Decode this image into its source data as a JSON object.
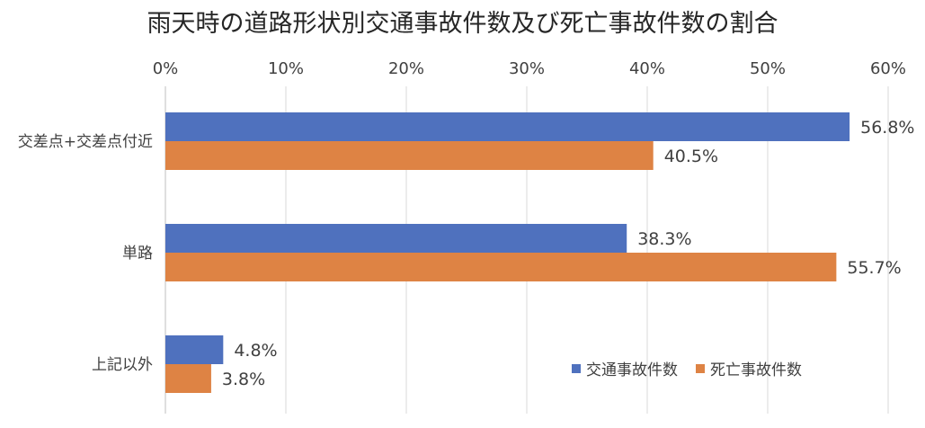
{
  "chart_data": {
    "type": "bar",
    "orientation": "horizontal",
    "title": "雨天時の道路形状別交通事故件数及び死亡事故件数の割合",
    "categories": [
      "交差点+交差点付近",
      "単路",
      "上記以外"
    ],
    "series": [
      {
        "name": "交通事故件数",
        "color": "#4F71BE",
        "values": [
          56.8,
          38.3,
          4.8
        ]
      },
      {
        "name": "死亡事故件数",
        "color": "#DE8344",
        "values": [
          40.5,
          55.7,
          3.8
        ]
      }
    ],
    "xlim": [
      0,
      60
    ],
    "xticks": [
      0,
      10,
      20,
      30,
      40,
      50,
      60
    ],
    "tick_format": "%",
    "data_label_format": "0.0%",
    "grid": true,
    "legend_position": "bottom-right"
  }
}
